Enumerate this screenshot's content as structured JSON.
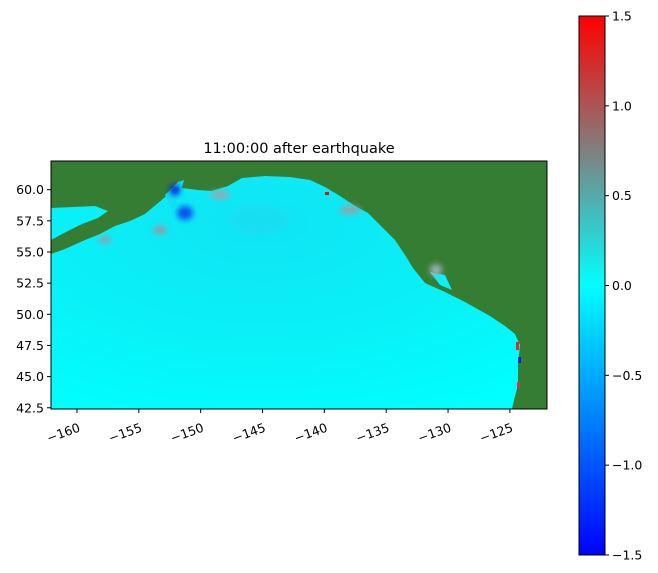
{
  "title": "11:00:00 after earthquake",
  "chart_data": {
    "type": "heatmap",
    "title": "11:00:00 after earthquake",
    "xlabel": "",
    "ylabel": "",
    "xlim": [
      -162.1,
      -122.0
    ],
    "ylim": [
      42.4,
      62.3
    ],
    "x_ticks": [
      "−160",
      "−155",
      "−150",
      "−145",
      "−140",
      "−135",
      "−130",
      "−125"
    ],
    "x_tick_values": [
      -160,
      -155,
      -150,
      -145,
      -140,
      -135,
      -130,
      -125
    ],
    "y_ticks": [
      "60.0",
      "57.5",
      "55.0",
      "52.5",
      "50.0",
      "47.5",
      "45.0",
      "42.5"
    ],
    "y_tick_values": [
      60.0,
      57.5,
      55.0,
      52.5,
      50.0,
      47.5,
      45.0,
      42.5
    ],
    "land_color": "#357d32",
    "colorbar": {
      "range": [
        -1.5,
        1.5
      ],
      "ticks": [
        "1.5",
        "1.0",
        "0.5",
        "0.0",
        "−0.5",
        "−1.0",
        "−1.5"
      ],
      "tick_values": [
        1.5,
        1.0,
        0.5,
        0.0,
        -0.5,
        -1.0,
        -1.5
      ],
      "colors": [
        "#0000ff",
        "#00ffff",
        "#808080",
        "#ff0000"
      ]
    }
  }
}
